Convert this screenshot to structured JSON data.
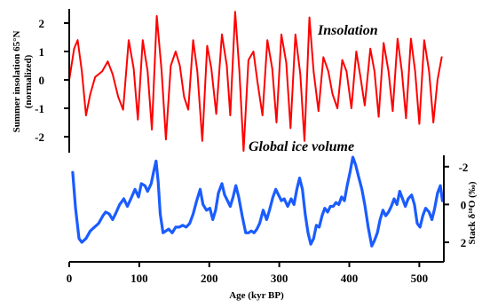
{
  "chart_data": {
    "type": "line",
    "title": "",
    "xlabel": "Age (kyr BP)",
    "xlim": [
      0,
      535
    ],
    "x_ticks": [
      "0",
      "100",
      "200",
      "300",
      "400",
      "500"
    ],
    "grid": false,
    "series": [
      {
        "name": "Insolation",
        "color": "#ff0000",
        "axis": "left",
        "ylabel_lines": [
          "Summer insolation 65°N",
          "(normalized)"
        ],
        "ylim": [
          -2.5,
          2.5
        ],
        "y_ticks": [
          "2",
          "1",
          "0",
          "-1",
          "-2"
        ],
        "points": [
          [
            0,
            0.0
          ],
          [
            7,
            1.1
          ],
          [
            12,
            1.4
          ],
          [
            18,
            0.3
          ],
          [
            24,
            -1.25
          ],
          [
            30,
            -0.5
          ],
          [
            37,
            0.1
          ],
          [
            47,
            0.3
          ],
          [
            55,
            0.65
          ],
          [
            62,
            0.2
          ],
          [
            70,
            -0.6
          ],
          [
            77,
            -1.05
          ],
          [
            85,
            1.4
          ],
          [
            92,
            0.4
          ],
          [
            98,
            -1.4
          ],
          [
            105,
            1.4
          ],
          [
            112,
            0.3
          ],
          [
            118,
            -1.75
          ],
          [
            125,
            2.25
          ],
          [
            132,
            0.3
          ],
          [
            138,
            -2.1
          ],
          [
            145,
            0.5
          ],
          [
            152,
            1.0
          ],
          [
            158,
            0.5
          ],
          [
            164,
            -0.6
          ],
          [
            170,
            -1.05
          ],
          [
            177,
            1.4
          ],
          [
            183,
            0.3
          ],
          [
            190,
            -2.15
          ],
          [
            197,
            1.2
          ],
          [
            203,
            0.4
          ],
          [
            210,
            -1.2
          ],
          [
            218,
            1.6
          ],
          [
            225,
            0.5
          ],
          [
            230,
            -1.25
          ],
          [
            237,
            2.4
          ],
          [
            243,
            0.3
          ],
          [
            249,
            -2.5
          ],
          [
            256,
            0.7
          ],
          [
            263,
            1.0
          ],
          [
            269,
            -0.1
          ],
          [
            276,
            -1.25
          ],
          [
            283,
            1.4
          ],
          [
            290,
            0.4
          ],
          [
            296,
            -1.5
          ],
          [
            303,
            1.6
          ],
          [
            310,
            0.6
          ],
          [
            316,
            -1.7
          ],
          [
            323,
            1.6
          ],
          [
            330,
            0.2
          ],
          [
            336,
            -2.15
          ],
          [
            343,
            2.2
          ],
          [
            349,
            0.3
          ],
          [
            356,
            -1.1
          ],
          [
            363,
            0.8
          ],
          [
            370,
            0.3
          ],
          [
            376,
            -0.5
          ],
          [
            383,
            -1.0
          ],
          [
            390,
            0.7
          ],
          [
            396,
            0.3
          ],
          [
            403,
            -1.0
          ],
          [
            410,
            1.0
          ],
          [
            416,
            0.1
          ],
          [
            422,
            -0.9
          ],
          [
            430,
            1.1
          ],
          [
            436,
            0.3
          ],
          [
            442,
            -1.3
          ],
          [
            449,
            1.3
          ],
          [
            456,
            0.3
          ],
          [
            462,
            -1.1
          ],
          [
            469,
            1.45
          ],
          [
            475,
            0.3
          ],
          [
            481,
            -1.35
          ],
          [
            488,
            1.45
          ],
          [
            494,
            0.3
          ],
          [
            500,
            -1.55
          ],
          [
            507,
            1.4
          ],
          [
            514,
            0.3
          ],
          [
            520,
            -1.5
          ],
          [
            526,
            0.0
          ],
          [
            532,
            0.8
          ]
        ]
      },
      {
        "name": "Global ice volume",
        "color": "#1a5cff",
        "axis": "right",
        "ylabel_lines": [
          "Stack δ¹⁸O (‰)"
        ],
        "ylim": [
          -2.6,
          2.8
        ],
        "inverted": true,
        "y_ticks": [
          "-2",
          "0",
          "2"
        ],
        "points": [
          [
            5,
            -1.7
          ],
          [
            9,
            0.2
          ],
          [
            14,
            1.8
          ],
          [
            18,
            2.0
          ],
          [
            24,
            1.8
          ],
          [
            30,
            1.4
          ],
          [
            36,
            1.2
          ],
          [
            42,
            1.0
          ],
          [
            48,
            0.6
          ],
          [
            52,
            0.4
          ],
          [
            57,
            0.5
          ],
          [
            62,
            0.8
          ],
          [
            66,
            0.5
          ],
          [
            72,
            0.0
          ],
          [
            78,
            -0.3
          ],
          [
            83,
            0.1
          ],
          [
            88,
            -0.3
          ],
          [
            94,
            -0.8
          ],
          [
            99,
            -0.4
          ],
          [
            103,
            -1.1
          ],
          [
            108,
            -1.0
          ],
          [
            112,
            -0.7
          ],
          [
            117,
            -1.1
          ],
          [
            121,
            -1.8
          ],
          [
            124,
            -2.3
          ],
          [
            127,
            -1.2
          ],
          [
            130,
            0.5
          ],
          [
            134,
            1.5
          ],
          [
            138,
            1.4
          ],
          [
            142,
            1.3
          ],
          [
            147,
            1.5
          ],
          [
            152,
            1.2
          ],
          [
            157,
            1.2
          ],
          [
            162,
            1.1
          ],
          [
            167,
            1.2
          ],
          [
            172,
            1.0
          ],
          [
            177,
            0.5
          ],
          [
            182,
            -0.2
          ],
          [
            187,
            -0.8
          ],
          [
            191,
            0.0
          ],
          [
            196,
            0.3
          ],
          [
            201,
            0.2
          ],
          [
            205,
            0.8
          ],
          [
            209,
            0.3
          ],
          [
            213,
            -0.6
          ],
          [
            218,
            -1.1
          ],
          [
            222,
            -0.5
          ],
          [
            226,
            -0.2
          ],
          [
            230,
            0.1
          ],
          [
            234,
            -0.4
          ],
          [
            238,
            -1.0
          ],
          [
            242,
            -0.4
          ],
          [
            247,
            0.6
          ],
          [
            252,
            1.5
          ],
          [
            256,
            1.5
          ],
          [
            260,
            1.4
          ],
          [
            264,
            1.5
          ],
          [
            268,
            1.3
          ],
          [
            272,
            1.0
          ],
          [
            277,
            0.3
          ],
          [
            282,
            0.8
          ],
          [
            286,
            0.3
          ],
          [
            291,
            -0.4
          ],
          [
            295,
            -0.8
          ],
          [
            299,
            -0.5
          ],
          [
            303,
            -0.2
          ],
          [
            307,
            -0.3
          ],
          [
            312,
            0.1
          ],
          [
            317,
            -0.3
          ],
          [
            321,
            0.0
          ],
          [
            325,
            -0.8
          ],
          [
            329,
            -1.4
          ],
          [
            333,
            -0.8
          ],
          [
            337,
            0.5
          ],
          [
            341,
            1.5
          ],
          [
            345,
            2.1
          ],
          [
            349,
            1.8
          ],
          [
            353,
            1.1
          ],
          [
            357,
            1.2
          ],
          [
            361,
            0.6
          ],
          [
            365,
            0.2
          ],
          [
            369,
            0.4
          ],
          [
            373,
            0.1
          ],
          [
            377,
            0.1
          ],
          [
            381,
            -0.1
          ],
          [
            385,
            0.0
          ],
          [
            389,
            -0.4
          ],
          [
            393,
            -0.2
          ],
          [
            397,
            -1.0
          ],
          [
            401,
            -1.7
          ],
          [
            405,
            -2.5
          ],
          [
            409,
            -2.1
          ],
          [
            413,
            -1.5
          ],
          [
            418,
            -0.8
          ],
          [
            422,
            0.0
          ],
          [
            427,
            1.2
          ],
          [
            432,
            2.2
          ],
          [
            436,
            1.9
          ],
          [
            440,
            1.5
          ],
          [
            444,
            0.8
          ],
          [
            448,
            0.3
          ],
          [
            452,
            0.6
          ],
          [
            456,
            0.4
          ],
          [
            460,
            0.1
          ],
          [
            464,
            -0.3
          ],
          [
            468,
            0.0
          ],
          [
            472,
            -0.7
          ],
          [
            476,
            -0.3
          ],
          [
            480,
            0.1
          ],
          [
            484,
            -0.3
          ],
          [
            489,
            -0.5
          ],
          [
            493,
            0.0
          ],
          [
            497,
            1.0
          ],
          [
            501,
            1.2
          ],
          [
            505,
            0.6
          ],
          [
            509,
            0.2
          ],
          [
            514,
            0.4
          ],
          [
            518,
            0.8
          ],
          [
            522,
            0.2
          ],
          [
            526,
            -0.6
          ],
          [
            530,
            -1.0
          ],
          [
            533,
            -0.2
          ]
        ]
      }
    ]
  }
}
